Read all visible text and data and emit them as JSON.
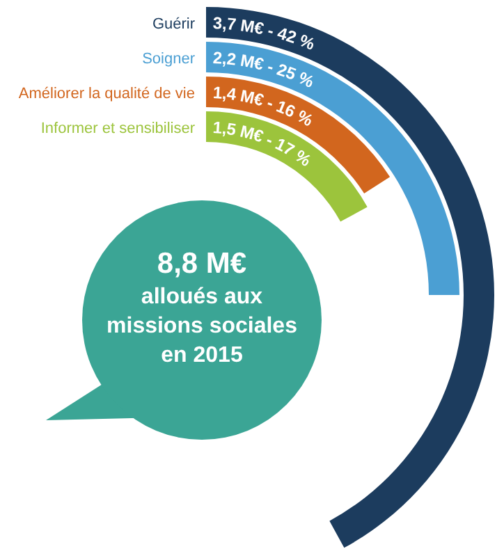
{
  "chart_data": {
    "type": "other",
    "categories": [
      "Guérir",
      "Soigner",
      "Améliorer la qualité de vie",
      "Informer et sensibiliser"
    ],
    "values": [
      3.7,
      2.2,
      1.4,
      1.5
    ],
    "value_labels": [
      "3,7 M€ - 42 %",
      "2,2 M€ - 25 %",
      "1,4 M€ - 16 %",
      "1,5 M€ - 17 %"
    ],
    "colors": [
      "#1c3c5e",
      "#4b9fd3",
      "#d2661e",
      "#9cc43c"
    ],
    "annotations": [
      "8,8 M€",
      "alloués aux missions sociales en 2015"
    ]
  }
}
